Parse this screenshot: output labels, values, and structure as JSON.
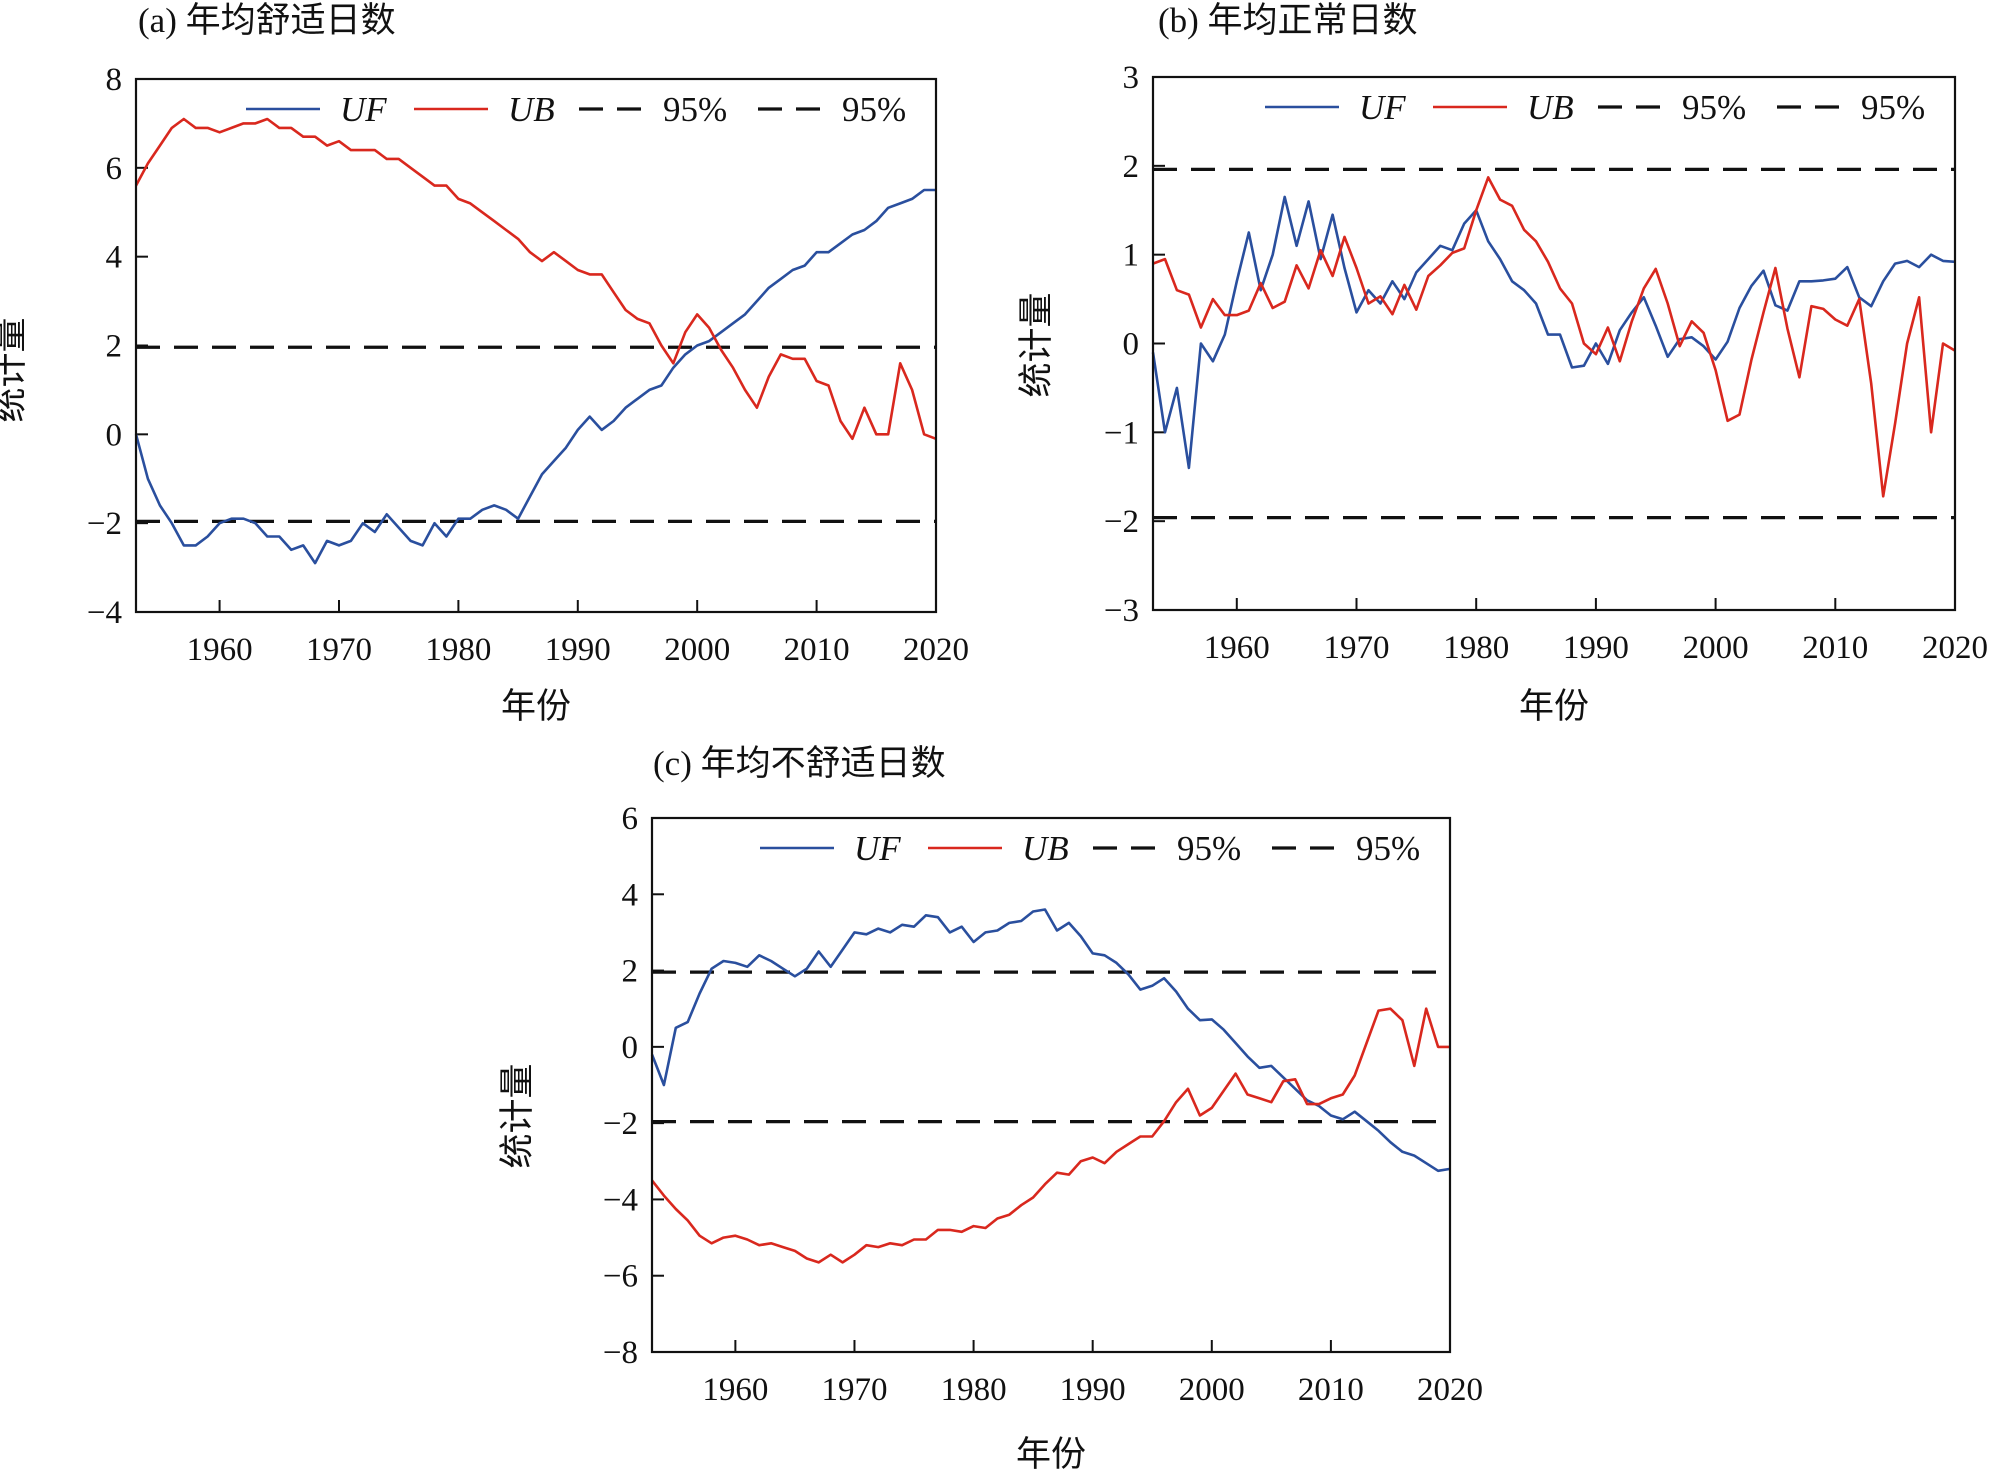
{
  "colors": {
    "UF": "#2a4f9e",
    "UB": "#d9281e",
    "threshold": "#111111"
  },
  "chart_data": [
    {
      "type": "line",
      "title": "(a) 年均舒适日数",
      "xlabel": "年份",
      "ylabel": "统计量",
      "xlim": [
        1953,
        2020
      ],
      "ylim": [
        -4,
        8
      ],
      "xticks": [
        "1960",
        "1970",
        "1980",
        "1990",
        "2000",
        "2010",
        "2020"
      ],
      "yticks": [
        "−4",
        "−2",
        "0",
        "2",
        "4",
        "6",
        "8"
      ],
      "ytick_values": [
        -4,
        -2,
        0,
        2,
        4,
        6,
        8
      ],
      "legend": [
        "UF",
        "UB",
        "95%",
        "95%"
      ],
      "legend_position": "top-right",
      "thresholds": [
        1.96,
        -1.96
      ],
      "x_start": 1953,
      "series": [
        {
          "name": "UF",
          "values": [
            0,
            -1.0,
            -1.6,
            -2.0,
            -2.5,
            -2.5,
            -2.3,
            -2.0,
            -1.9,
            -1.9,
            -2.0,
            -2.3,
            -2.3,
            -2.6,
            -2.5,
            -2.9,
            -2.4,
            -2.5,
            -2.4,
            -2.0,
            -2.2,
            -1.8,
            -2.1,
            -2.4,
            -2.5,
            -2.0,
            -2.3,
            -1.9,
            -1.9,
            -1.7,
            -1.6,
            -1.7,
            -1.9,
            -1.4,
            -0.9,
            -0.6,
            -0.3,
            0.1,
            0.4,
            0.1,
            0.3,
            0.6,
            0.8,
            1.0,
            1.1,
            1.5,
            1.8,
            2.0,
            2.1,
            2.3,
            2.5,
            2.7,
            3.0,
            3.3,
            3.5,
            3.7,
            3.8,
            4.1,
            4.1,
            4.3,
            4.5,
            4.6,
            4.8,
            5.1,
            5.2,
            5.3,
            5.5,
            5.5
          ]
        },
        {
          "name": "UB",
          "values": [
            5.6,
            6.1,
            6.5,
            6.9,
            7.1,
            6.9,
            6.9,
            6.8,
            6.9,
            7.0,
            7.0,
            7.1,
            6.9,
            6.9,
            6.7,
            6.7,
            6.5,
            6.6,
            6.4,
            6.4,
            6.4,
            6.2,
            6.2,
            6.0,
            5.8,
            5.6,
            5.6,
            5.3,
            5.2,
            5.0,
            4.8,
            4.6,
            4.4,
            4.1,
            3.9,
            4.1,
            3.9,
            3.7,
            3.6,
            3.6,
            3.2,
            2.8,
            2.6,
            2.5,
            2.0,
            1.6,
            2.3,
            2.7,
            2.4,
            1.9,
            1.5,
            1.0,
            0.6,
            1.3,
            1.8,
            1.7,
            1.7,
            1.2,
            1.1,
            0.3,
            -0.1,
            0.6,
            0.0,
            0.0,
            1.6,
            1.0,
            0.0,
            -0.1
          ]
        }
      ]
    },
    {
      "type": "line",
      "title": "(b) 年均正常日数",
      "xlabel": "年份",
      "ylabel": "统计量",
      "xlim": [
        1953,
        2020
      ],
      "ylim": [
        -3,
        3
      ],
      "xticks": [
        "1960",
        "1970",
        "1980",
        "1990",
        "2000",
        "2010",
        "2020"
      ],
      "yticks": [
        "−3",
        "−2",
        "−1",
        "0",
        "1",
        "2",
        "3"
      ],
      "ytick_values": [
        -3,
        -2,
        -1,
        0,
        1,
        2,
        3
      ],
      "legend": [
        "UF",
        "UB",
        "95%",
        "95%"
      ],
      "legend_position": "top-right",
      "thresholds": [
        1.96,
        -1.96
      ],
      "x_start": 1953,
      "series": [
        {
          "name": "UF",
          "values": [
            -0.1,
            -1.0,
            -0.5,
            -1.4,
            0.0,
            -0.2,
            0.1,
            0.7,
            1.25,
            0.6,
            1.0,
            1.65,
            1.1,
            1.6,
            0.95,
            1.45,
            0.85,
            0.35,
            0.6,
            0.45,
            0.7,
            0.5,
            0.8,
            0.95,
            1.1,
            1.05,
            1.35,
            1.5,
            1.15,
            0.95,
            0.7,
            0.6,
            0.45,
            0.1,
            0.1,
            -0.27,
            -0.25,
            0.0,
            -0.23,
            0.15,
            0.35,
            0.52,
            0.2,
            -0.15,
            0.05,
            0.07,
            -0.03,
            -0.18,
            0.02,
            0.4,
            0.65,
            0.82,
            0.43,
            0.37,
            0.7,
            0.7,
            0.71,
            0.73,
            0.86,
            0.52,
            0.42,
            0.7,
            0.9,
            0.93,
            0.86,
            1.0,
            0.93,
            0.92
          ]
        },
        {
          "name": "UB",
          "values": [
            0.9,
            0.95,
            0.6,
            0.55,
            0.18,
            0.5,
            0.32,
            0.32,
            0.37,
            0.68,
            0.4,
            0.47,
            0.88,
            0.62,
            1.05,
            0.76,
            1.2,
            0.85,
            0.45,
            0.53,
            0.33,
            0.66,
            0.38,
            0.76,
            0.88,
            1.02,
            1.07,
            1.5,
            1.87,
            1.62,
            1.55,
            1.28,
            1.15,
            0.92,
            0.62,
            0.45,
            0.0,
            -0.12,
            0.18,
            -0.2,
            0.25,
            0.62,
            0.84,
            0.45,
            -0.03,
            0.25,
            0.12,
            -0.3,
            -0.87,
            -0.8,
            -0.18,
            0.35,
            0.85,
            0.17,
            -0.38,
            0.42,
            0.39,
            0.27,
            0.2,
            0.5,
            -0.45,
            -1.72,
            -0.9,
            0.0,
            0.52,
            -1.0,
            0.0,
            -0.08
          ]
        }
      ]
    },
    {
      "type": "line",
      "title": "(c) 年均不舒适日数",
      "xlabel": "年份",
      "ylabel": "统计量",
      "xlim": [
        1953,
        2020
      ],
      "ylim": [
        -8,
        6
      ],
      "xticks": [
        "1960",
        "1970",
        "1980",
        "1990",
        "2000",
        "2010",
        "2020"
      ],
      "yticks": [
        "−8",
        "−6",
        "−4",
        "−2",
        "0",
        "2",
        "4",
        "6"
      ],
      "ytick_values": [
        -8,
        -6,
        -4,
        -2,
        0,
        2,
        4,
        6
      ],
      "legend": [
        "UF",
        "UB",
        "95%",
        "95%"
      ],
      "legend_position": "top-right",
      "thresholds": [
        1.96,
        -1.96
      ],
      "x_start": 1953,
      "series": [
        {
          "name": "UF",
          "values": [
            -0.2,
            -1.0,
            0.5,
            0.65,
            1.4,
            2.05,
            2.25,
            2.2,
            2.1,
            2.4,
            2.25,
            2.05,
            1.85,
            2.05,
            2.5,
            2.1,
            2.55,
            3.0,
            2.95,
            3.1,
            3.0,
            3.2,
            3.15,
            3.45,
            3.4,
            3.0,
            3.15,
            2.75,
            3.0,
            3.05,
            3.25,
            3.3,
            3.55,
            3.6,
            3.05,
            3.25,
            2.9,
            2.45,
            2.4,
            2.2,
            1.9,
            1.5,
            1.6,
            1.8,
            1.45,
            1.0,
            0.7,
            0.72,
            0.45,
            0.1,
            -0.25,
            -0.55,
            -0.5,
            -0.8,
            -1.1,
            -1.4,
            -1.55,
            -1.8,
            -1.9,
            -1.7,
            -1.95,
            -2.2,
            -2.5,
            -2.75,
            -2.85,
            -3.05,
            -3.25,
            -3.2
          ]
        },
        {
          "name": "UB",
          "values": [
            -3.5,
            -3.9,
            -4.25,
            -4.55,
            -4.95,
            -5.15,
            -5.0,
            -4.95,
            -5.05,
            -5.2,
            -5.15,
            -5.25,
            -5.35,
            -5.55,
            -5.65,
            -5.45,
            -5.65,
            -5.45,
            -5.2,
            -5.25,
            -5.15,
            -5.2,
            -5.05,
            -5.05,
            -4.8,
            -4.8,
            -4.85,
            -4.7,
            -4.75,
            -4.5,
            -4.4,
            -4.15,
            -3.95,
            -3.6,
            -3.3,
            -3.35,
            -3.0,
            -2.9,
            -3.05,
            -2.75,
            -2.55,
            -2.35,
            -2.35,
            -1.95,
            -1.45,
            -1.1,
            -1.8,
            -1.6,
            -1.15,
            -0.7,
            -1.25,
            -1.35,
            -1.45,
            -0.9,
            -0.85,
            -1.5,
            -1.5,
            -1.35,
            -1.25,
            -0.75,
            0.1,
            0.95,
            1.0,
            0.7,
            -0.5,
            1.0,
            0.0,
            0.0
          ]
        }
      ]
    }
  ]
}
